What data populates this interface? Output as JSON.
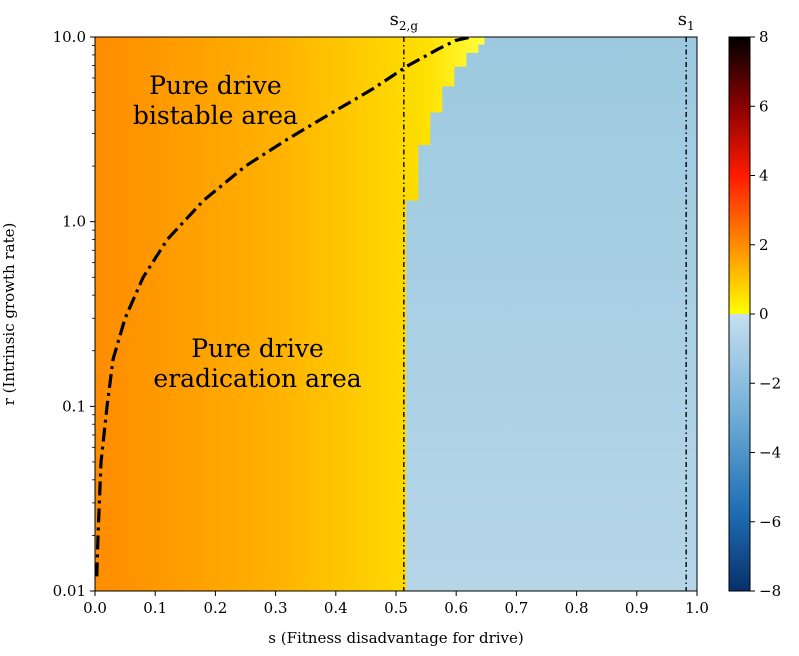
{
  "chart_data": {
    "type": "heatmap",
    "xlabel": "s (Fitness disadvantage for drive)",
    "ylabel": "r (Intrinsic growth rate)",
    "xlim": [
      0.0,
      1.0
    ],
    "ylim": [
      0.01,
      10.0
    ],
    "yscale": "log",
    "x_ticks": [
      0.0,
      0.1,
      0.2,
      0.3,
      0.4,
      0.5,
      0.6,
      0.7,
      0.8,
      0.9,
      1.0
    ],
    "x_tick_labels": [
      "0.0",
      "0.1",
      "0.2",
      "0.3",
      "0.4",
      "0.5",
      "0.6",
      "0.7",
      "0.8",
      "0.9",
      "1.0"
    ],
    "y_ticks": [
      0.01,
      0.1,
      1.0,
      10.0
    ],
    "y_tick_labels": [
      "0.01",
      "0.1",
      "1.0",
      "10.0"
    ],
    "colorbar": {
      "vmin": -8,
      "vmax": 8,
      "ticks": [
        8,
        6,
        4,
        2,
        0,
        -2,
        -4,
        -6,
        -8
      ],
      "tick_labels": [
        "8",
        "6",
        "4",
        "2",
        "0",
        "−2",
        "−4",
        "−6",
        "−8"
      ]
    },
    "annotations": [
      {
        "text_lines": [
          "Pure drive",
          "bistable area"
        ],
        "x": 0.2,
        "y": 4.5
      },
      {
        "text_lines": [
          "Pure drive",
          "eradication area"
        ],
        "x": 0.27,
        "y": 0.17
      }
    ],
    "vertical_lines": [
      {
        "label_base": "s",
        "label_sub": "2,g",
        "x": 0.513,
        "style": "dotted"
      },
      {
        "label_base": "s",
        "label_sub": "1",
        "x": 0.982,
        "style": "dotted"
      }
    ],
    "boundary_curve": {
      "style": "dashdot",
      "points": [
        [
          0.003,
          0.012
        ],
        [
          0.005,
          0.02
        ],
        [
          0.01,
          0.05
        ],
        [
          0.02,
          0.1
        ],
        [
          0.03,
          0.18
        ],
        [
          0.05,
          0.3
        ],
        [
          0.08,
          0.5
        ],
        [
          0.12,
          0.8
        ],
        [
          0.18,
          1.3
        ],
        [
          0.25,
          2.0
        ],
        [
          0.32,
          2.8
        ],
        [
          0.4,
          4.0
        ],
        [
          0.46,
          5.2
        ],
        [
          0.52,
          7.0
        ],
        [
          0.57,
          8.6
        ],
        [
          0.6,
          9.6
        ],
        [
          0.625,
          10.0
        ]
      ]
    },
    "region_boundary_steps": [
      {
        "s": 0.517,
        "r_min": 0.01,
        "r_max": 1.3
      },
      {
        "s": 0.537,
        "r_min": 1.3,
        "r_max": 2.6
      },
      {
        "s": 0.557,
        "r_min": 2.6,
        "r_max": 3.9
      },
      {
        "s": 0.577,
        "r_min": 3.9,
        "r_max": 5.4
      },
      {
        "s": 0.597,
        "r_min": 5.4,
        "r_max": 6.9
      },
      {
        "s": 0.617,
        "r_min": 6.9,
        "r_max": 8.2
      },
      {
        "s": 0.637,
        "r_min": 8.2,
        "r_max": 9.1
      },
      {
        "s": 0.647,
        "r_min": 9.1,
        "r_max": 10.0
      }
    ],
    "grid": false
  }
}
